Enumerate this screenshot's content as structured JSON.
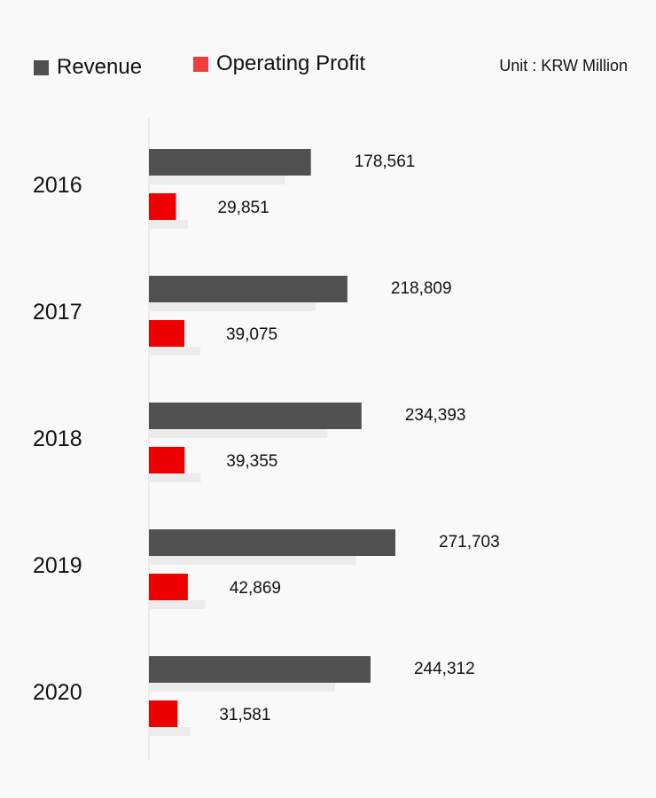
{
  "legend": {
    "revenue_label": "Revenue",
    "profit_label": "Operating Profit"
  },
  "unit_label": "Unit : KRW Million",
  "colors": {
    "revenue": "#505050",
    "profit": "#ee0000",
    "profit_legend": "#f03c3c",
    "shadow": "#ebebeb",
    "axis": "#dddddd",
    "background": "#f9f9f9"
  },
  "chart_data": {
    "type": "bar",
    "orientation": "horizontal",
    "categories": [
      "2016",
      "2017",
      "2018",
      "2019",
      "2020"
    ],
    "series": [
      {
        "name": "Revenue",
        "values": [
          178561,
          218809,
          234393,
          271703,
          244312
        ],
        "labels": [
          "178,561",
          "218,809",
          "234,393",
          "271,703",
          "244,312"
        ]
      },
      {
        "name": "Operating Profit",
        "values": [
          29851,
          39075,
          39355,
          42869,
          31581
        ],
        "labels": [
          "29,851",
          "39,075",
          "39,355",
          "42,869",
          "31,581"
        ]
      }
    ],
    "legend_position": "top-left",
    "grid": false
  }
}
